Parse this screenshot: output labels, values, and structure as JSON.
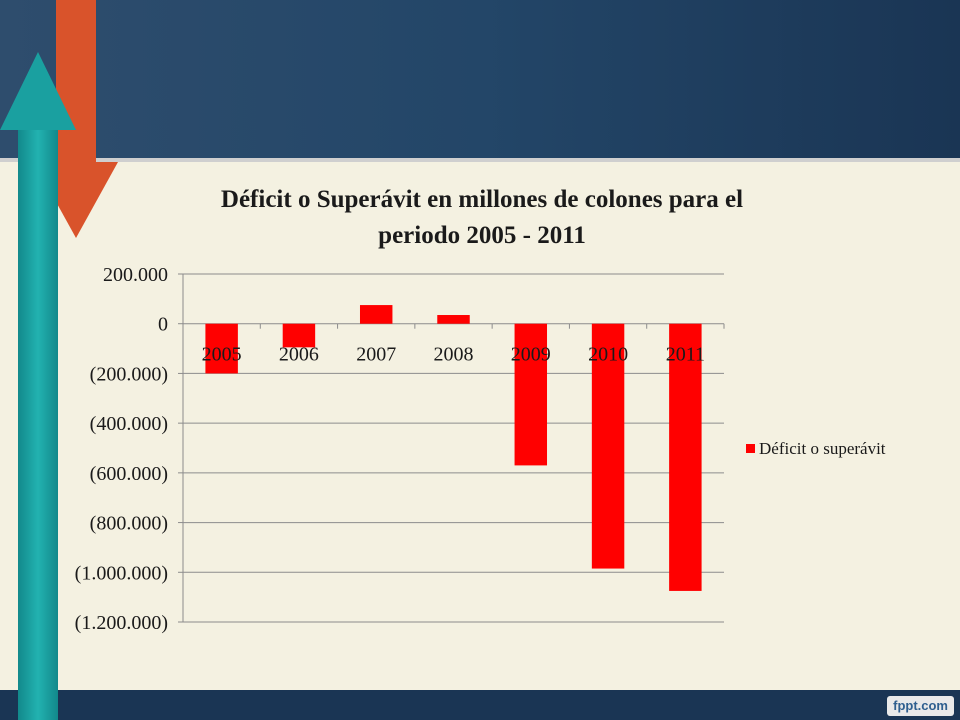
{
  "slide": {
    "header_color": "#1c3a5a",
    "background": "#f4f1e1",
    "footer_color": "#1a3554",
    "arrow_down_color": "#d9532b",
    "arrow_up_color": "#1aa0a0",
    "watermark": "fppt.com"
  },
  "chart_data": {
    "type": "bar",
    "title": "Déficit o Superávit en millones de colones para el periodo 2005 - 2011",
    "title_lines": [
      "Déficit o Superávit en millones de colones para el",
      "periodo 2005 - 2011"
    ],
    "categories": [
      "2005",
      "2006",
      "2007",
      "2008",
      "2009",
      "2010",
      "2011"
    ],
    "series": [
      {
        "name": "Déficit o superávit",
        "color": "#ff0000",
        "values": [
          -200000,
          -95000,
          75000,
          35000,
          -570000,
          -985000,
          -1075000
        ]
      }
    ],
    "ylim": [
      -1200000,
      200000
    ],
    "yticks": [
      200000,
      0,
      -200000,
      -400000,
      -600000,
      -800000,
      -1000000,
      -1200000
    ],
    "ytick_labels": [
      "200.000",
      "0",
      "(200.000)",
      "(400.000)",
      "(600.000)",
      "(800.000)",
      "(1.000.000)",
      "(1.200.000)"
    ],
    "grid": true,
    "legend_position": "right"
  }
}
